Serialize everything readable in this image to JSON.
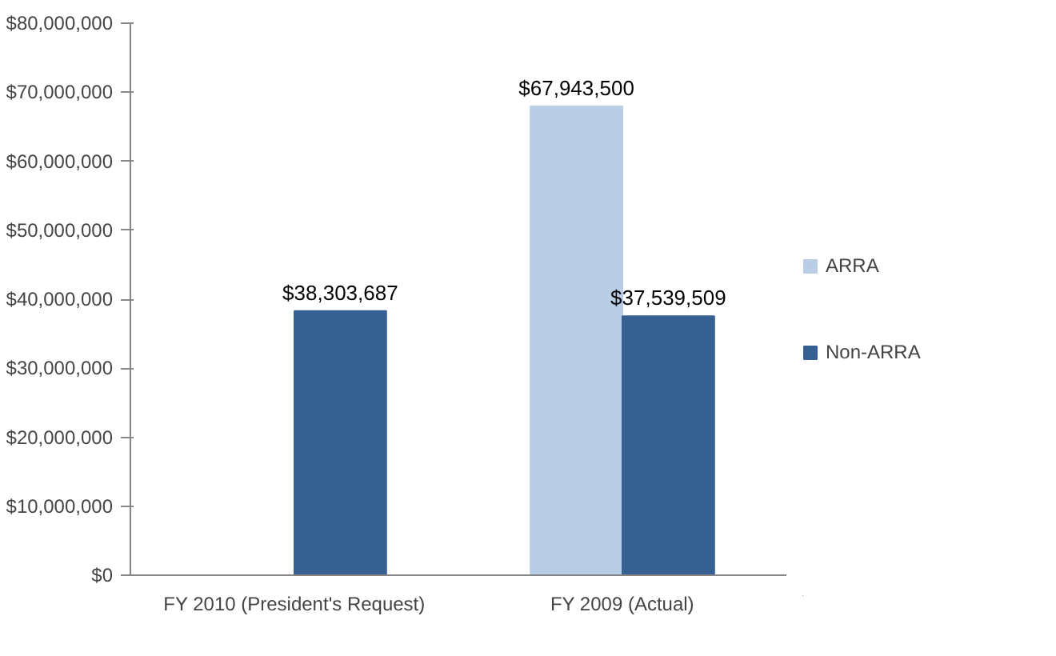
{
  "chart_data": {
    "type": "bar",
    "categories": [
      "FY 2010 (President's Request)",
      "FY 2009 (Actual)"
    ],
    "series": [
      {
        "name": "ARRA",
        "color": "#b9cde5",
        "values": [
          null,
          67943500
        ],
        "value_labels": [
          null,
          "$67,943,500"
        ]
      },
      {
        "name": "Non-ARRA",
        "color": "#376092",
        "values": [
          38303687,
          37539509
        ],
        "value_labels": [
          "$38,303,687",
          "$37,539,509"
        ]
      }
    ],
    "ylim": [
      0,
      80000000
    ],
    "yticks": [
      {
        "value": 0,
        "label": "$0"
      },
      {
        "value": 10000000,
        "label": "$10,000,000"
      },
      {
        "value": 20000000,
        "label": "$20,000,000"
      },
      {
        "value": 30000000,
        "label": "$30,000,000"
      },
      {
        "value": 40000000,
        "label": "$40,000,000"
      },
      {
        "value": 50000000,
        "label": "$50,000,000"
      },
      {
        "value": 60000000,
        "label": "$60,000,000"
      },
      {
        "value": 70000000,
        "label": "$70,000,000"
      },
      {
        "value": 80000000,
        "label": "$80,000,000"
      }
    ],
    "grid": false,
    "legend": "right"
  }
}
